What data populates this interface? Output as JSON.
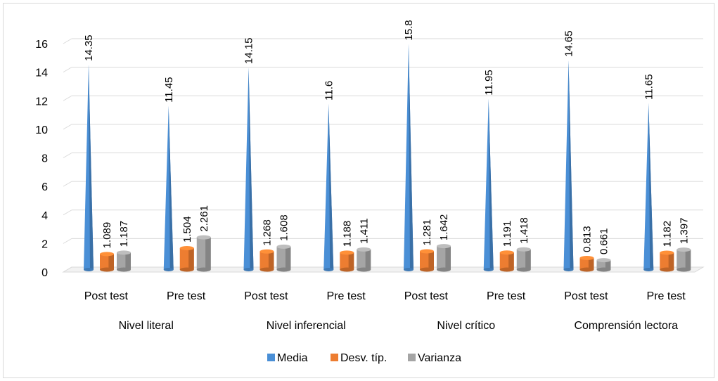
{
  "chart_data": {
    "type": "bar",
    "groups": [
      "Nivel literal",
      "Nivel inferencial",
      "Nivel crítico",
      "Comprensión lectora"
    ],
    "categories": [
      "Post test",
      "Pre test",
      "Post test",
      "Pre test",
      "Post test",
      "Pre test",
      "Post test",
      "Pre test"
    ],
    "series": [
      {
        "name": "Media",
        "values": [
          14.35,
          11.45,
          14.15,
          11.6,
          15.8,
          11.95,
          14.65,
          11.65
        ],
        "labels": [
          "14.35",
          "11.45",
          "14.15",
          "11.6",
          "15.8",
          "11.95",
          "14.65",
          "11.65"
        ],
        "color": "#4a8fd6"
      },
      {
        "name": "Desv. típ.",
        "values": [
          1.089,
          1.504,
          1.268,
          1.188,
          1.281,
          1.191,
          0.813,
          1.182
        ],
        "labels": [
          "1.089",
          "1.504",
          "1.268",
          "1.188",
          "1.281",
          "1.191",
          "0.813",
          "1.182"
        ],
        "color": "#ed7d31"
      },
      {
        "name": "Varianza",
        "values": [
          1.187,
          2.261,
          1.608,
          1.411,
          1.642,
          1.418,
          0.661,
          1.397
        ],
        "labels": [
          "1.187",
          "2.261",
          "1.608",
          "1.411",
          "1.642",
          "1.418",
          "0.661",
          "1.397"
        ],
        "color": "#a5a5a5"
      }
    ],
    "yticks": [
      "0",
      "2",
      "4",
      "6",
      "8",
      "10",
      "12",
      "14",
      "16"
    ],
    "ylim": [
      0,
      16
    ],
    "grid": true,
    "legend": "bottom"
  }
}
